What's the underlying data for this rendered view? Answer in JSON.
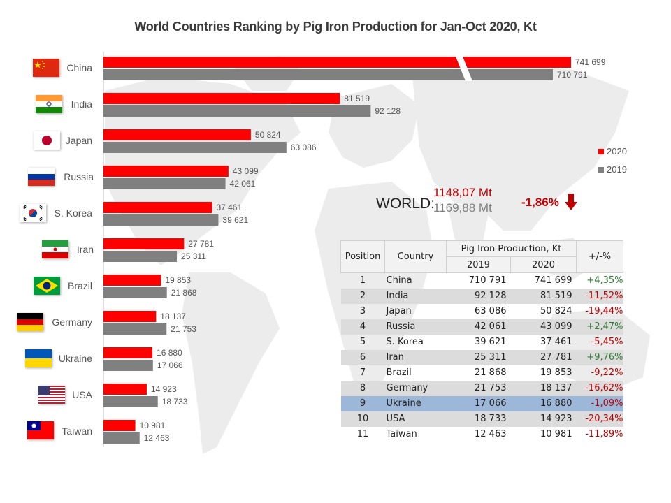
{
  "title": "World Countries Ranking by Pig Iron Production for Jan-Oct 2020, Kt",
  "colors": {
    "y2020": "#ff0000",
    "y2019": "#808080",
    "positive": "#2e7d32",
    "negative": "#c00000",
    "highlight_row": "#9db7d8"
  },
  "legend": [
    {
      "label": "2020",
      "color": "#ff0000"
    },
    {
      "label": "2019",
      "color": "#808080"
    }
  ],
  "world": {
    "label": "WORLD:",
    "value_2020": "1148,07 Mt",
    "value_2019": "1169,88 Mt",
    "change": "-1,86%",
    "change_icon": "down-arrow-icon"
  },
  "chart_data": {
    "type": "bar",
    "orientation": "horizontal",
    "title": "World Countries Ranking by Pig Iron Production for Jan-Oct 2020, Kt",
    "categories": [
      "China",
      "India",
      "Japan",
      "Russia",
      "S. Korea",
      "Iran",
      "Brazil",
      "Germany",
      "Ukraine",
      "USA",
      "Taiwan"
    ],
    "series": [
      {
        "name": "2020",
        "values": [
          741699,
          81519,
          50824,
          43099,
          37461,
          27781,
          19853,
          18137,
          16880,
          14923,
          10981
        ],
        "labels": [
          "741 699",
          "81 519",
          "50 824",
          "43 099",
          "37 461",
          "27 781",
          "19 853",
          "18 137",
          "16 880",
          "14 923",
          "10 981"
        ]
      },
      {
        "name": "2019",
        "values": [
          710791,
          92128,
          63086,
          42061,
          39621,
          25311,
          21868,
          21753,
          17066,
          18733,
          12463
        ],
        "labels": [
          "710 791",
          "92 128",
          "63 086",
          "42 061",
          "39 621",
          "25 311",
          "21 868",
          "21 753",
          "17 066",
          "18 733",
          "12 463"
        ]
      }
    ],
    "axis_break": "China bars truncated (broken axis)",
    "grid": false,
    "legend_position": "right"
  },
  "table": {
    "headers": {
      "position": "Position",
      "country": "Country",
      "production": "Pig Iron Production, Kt",
      "year2019": "2019",
      "year2020": "2020",
      "change": "+/-%"
    },
    "rows": [
      {
        "pos": "1",
        "country": "China",
        "v2019": "710 791",
        "v2020": "741 699",
        "chg": "+4,35%"
      },
      {
        "pos": "2",
        "country": "India",
        "v2019": "92 128",
        "v2020": "81 519",
        "chg": "-11,52%"
      },
      {
        "pos": "3",
        "country": "Japan",
        "v2019": "63 086",
        "v2020": "50 824",
        "chg": "-19,44%"
      },
      {
        "pos": "4",
        "country": "Russia",
        "v2019": "42 061",
        "v2020": "43 099",
        "chg": "+2,47%"
      },
      {
        "pos": "5",
        "country": "S. Korea",
        "v2019": "39 621",
        "v2020": "37 461",
        "chg": "-5,45%"
      },
      {
        "pos": "6",
        "country": "Iran",
        "v2019": "25 311",
        "v2020": "27 781",
        "chg": "+9,76%"
      },
      {
        "pos": "7",
        "country": "Brazil",
        "v2019": "21 868",
        "v2020": "19 853",
        "chg": "-9,22%"
      },
      {
        "pos": "8",
        "country": "Germany",
        "v2019": "21 753",
        "v2020": "18 137",
        "chg": "-16,62%"
      },
      {
        "pos": "9",
        "country": "Ukraine",
        "v2019": "17 066",
        "v2020": "16 880",
        "chg": "-1,09%",
        "highlight": true
      },
      {
        "pos": "10",
        "country": "USA",
        "v2019": "18 733",
        "v2020": "14 923",
        "chg": "-20,34%"
      },
      {
        "pos": "11",
        "country": "Taiwan",
        "v2019": "12 463",
        "v2020": "10 981",
        "chg": "-11,89%"
      }
    ]
  },
  "flags": [
    "china-flag-icon",
    "india-flag-icon",
    "japan-flag-icon",
    "russia-flag-icon",
    "south-korea-flag-icon",
    "iran-flag-icon",
    "brazil-flag-icon",
    "germany-flag-icon",
    "ukraine-flag-icon",
    "usa-flag-icon",
    "taiwan-flag-icon"
  ]
}
